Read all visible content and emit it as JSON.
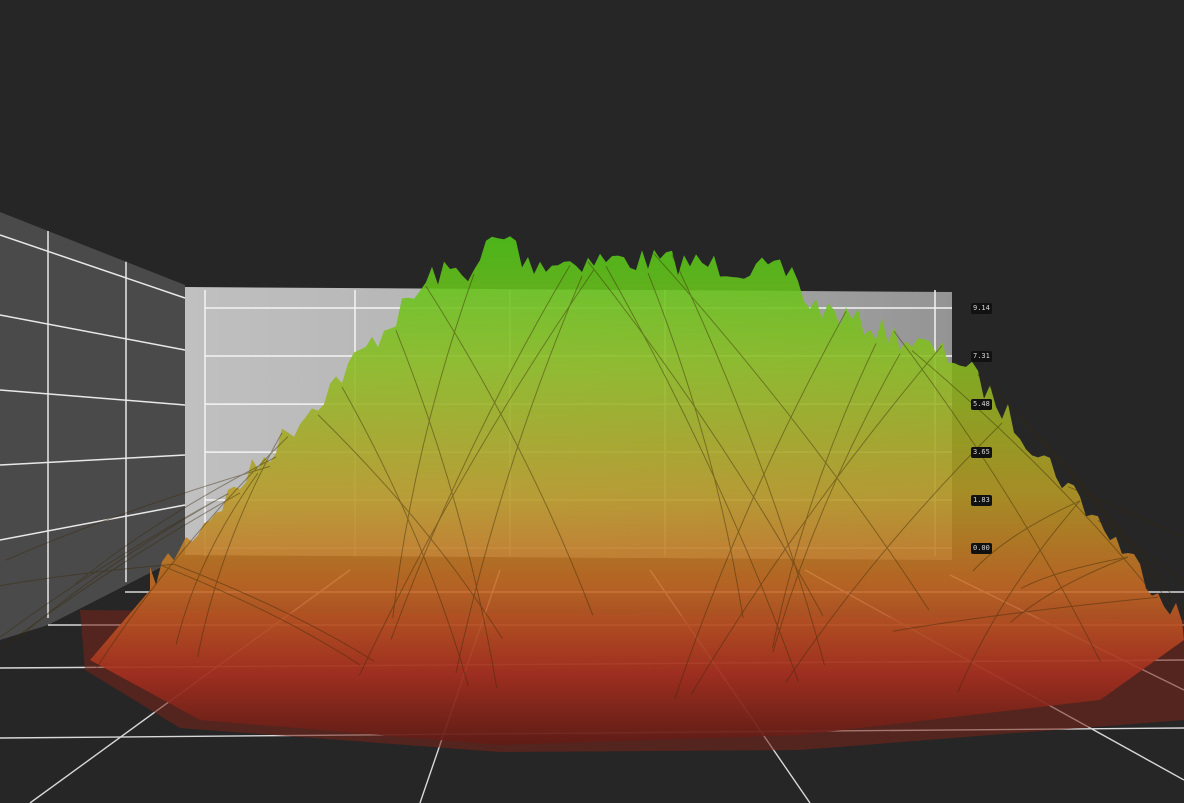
{
  "chart_data": {
    "type": "surface-3d",
    "title": "",
    "zlabel": "",
    "z_ticks": [
      "9.14",
      "7.31",
      "5.48",
      "3.65",
      "1.83",
      "0.00"
    ],
    "zlim": [
      0,
      9.14
    ],
    "grid": true,
    "colormap": [
      "#c0301a",
      "#d0781e",
      "#a8a020",
      "#5cc81c"
    ],
    "background": "#262626"
  }
}
